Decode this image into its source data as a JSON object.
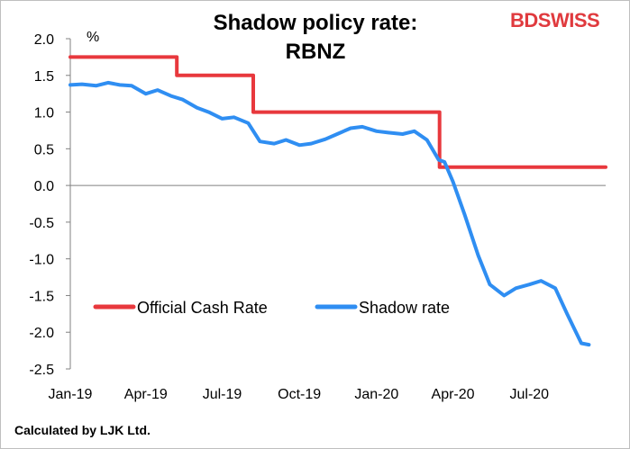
{
  "header": {
    "title_line1": "Shadow policy rate:",
    "title_line2": "RBNZ"
  },
  "logo": {
    "part1": "BD",
    "part2": "SWISS",
    "color": "#e03a3e"
  },
  "footer": {
    "note": "Calculated by LJK  Ltd."
  },
  "chart_data": {
    "type": "line",
    "title": "Shadow policy rate: RBNZ",
    "ylabel": "%",
    "ylim": [
      -2.5,
      2.0
    ],
    "yticks": [
      2.0,
      1.5,
      1.0,
      0.5,
      0.0,
      -0.5,
      -1.0,
      -1.5,
      -2.0,
      -2.5
    ],
    "ytick_labels": [
      "2.0",
      "1.5",
      "1.0",
      "0.5",
      "0.0",
      "-0.5",
      "-1.0",
      "-1.5",
      "-2.0",
      "-2.5"
    ],
    "xlim": [
      "2019-01-01",
      "2020-09-30"
    ],
    "xticks": [
      "2019-01-01",
      "2019-04-01",
      "2019-07-01",
      "2019-10-01",
      "2020-01-01",
      "2020-04-01",
      "2020-07-01"
    ],
    "xtick_labels": [
      "Jan-19",
      "Apr-19",
      "Jul-19",
      "Oct-19",
      "Jan-20",
      "Apr-20",
      "Jul-20"
    ],
    "legend_position": "lower-center",
    "series": [
      {
        "name": "Official Cash Rate",
        "color": "#e8383d",
        "step": true,
        "points": [
          [
            "2019-01-01",
            1.75
          ],
          [
            "2019-05-08",
            1.75
          ],
          [
            "2019-05-08",
            1.5
          ],
          [
            "2019-08-07",
            1.5
          ],
          [
            "2019-08-07",
            1.0
          ],
          [
            "2020-03-16",
            1.0
          ],
          [
            "2020-03-16",
            0.25
          ],
          [
            "2020-09-30",
            0.25
          ]
        ]
      },
      {
        "name": "Shadow rate",
        "color": "#2f8ef2",
        "points": [
          [
            "2019-01-01",
            1.37
          ],
          [
            "2019-01-15",
            1.38
          ],
          [
            "2019-02-01",
            1.36
          ],
          [
            "2019-02-15",
            1.4
          ],
          [
            "2019-03-01",
            1.37
          ],
          [
            "2019-03-15",
            1.36
          ],
          [
            "2019-04-01",
            1.25
          ],
          [
            "2019-04-15",
            1.3
          ],
          [
            "2019-05-01",
            1.22
          ],
          [
            "2019-05-15",
            1.17
          ],
          [
            "2019-06-01",
            1.06
          ],
          [
            "2019-06-15",
            1.0
          ],
          [
            "2019-07-01",
            0.91
          ],
          [
            "2019-07-15",
            0.93
          ],
          [
            "2019-08-01",
            0.85
          ],
          [
            "2019-08-15",
            0.6
          ],
          [
            "2019-09-01",
            0.57
          ],
          [
            "2019-09-15",
            0.62
          ],
          [
            "2019-10-01",
            0.55
          ],
          [
            "2019-10-15",
            0.57
          ],
          [
            "2019-11-01",
            0.63
          ],
          [
            "2019-11-15",
            0.7
          ],
          [
            "2019-12-01",
            0.78
          ],
          [
            "2019-12-15",
            0.8
          ],
          [
            "2020-01-01",
            0.74
          ],
          [
            "2020-01-15",
            0.72
          ],
          [
            "2020-02-01",
            0.7
          ],
          [
            "2020-02-15",
            0.74
          ],
          [
            "2020-03-01",
            0.62
          ],
          [
            "2020-03-15",
            0.35
          ],
          [
            "2020-03-22",
            0.32
          ],
          [
            "2020-04-01",
            0.05
          ],
          [
            "2020-04-15",
            -0.4
          ],
          [
            "2020-05-01",
            -0.95
          ],
          [
            "2020-05-15",
            -1.35
          ],
          [
            "2020-06-01",
            -1.5
          ],
          [
            "2020-06-15",
            -1.4
          ],
          [
            "2020-07-01",
            -1.35
          ],
          [
            "2020-07-15",
            -1.3
          ],
          [
            "2020-08-01",
            -1.4
          ],
          [
            "2020-08-15",
            -1.75
          ],
          [
            "2020-09-01",
            -2.15
          ],
          [
            "2020-09-10",
            -2.17
          ]
        ]
      }
    ]
  }
}
